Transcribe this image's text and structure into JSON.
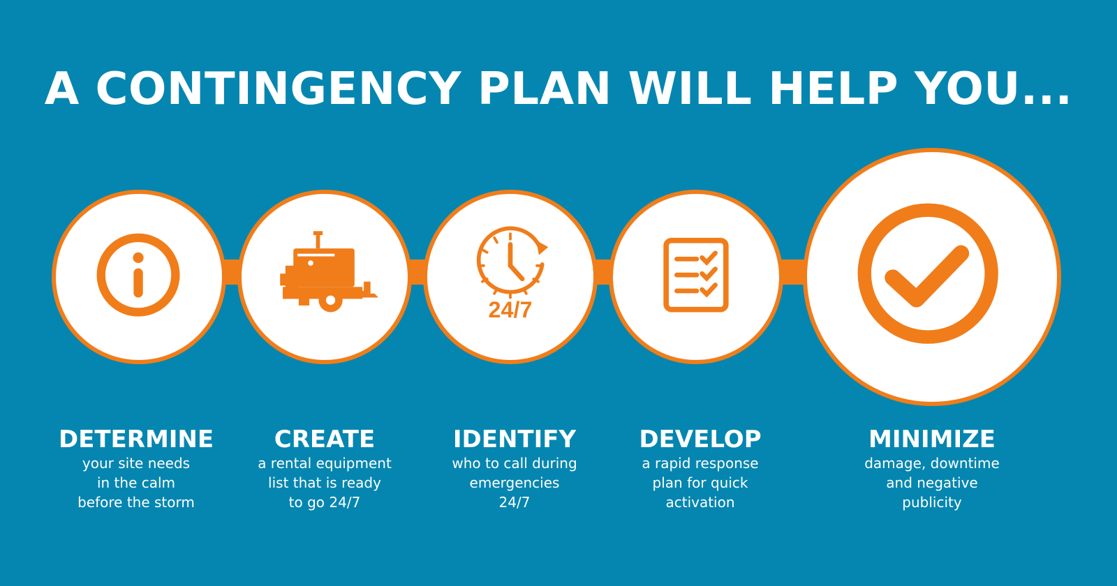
{
  "title": "A CONTINGENCY PLAN WILL HELP YOU...",
  "colors": {
    "background": "#0586b0",
    "accent": "#f07d1a",
    "circle_fill": "#ffffff",
    "text": "#ffffff"
  },
  "steps": [
    {
      "icon": "info-icon",
      "heading": "DETERMINE",
      "description": "your site needs\nin the calm\nbefore the storm"
    },
    {
      "icon": "trailer-pump-icon",
      "heading": "CREATE",
      "description": "a rental equipment\nlist that is ready\nto go 24/7"
    },
    {
      "icon": "clock-24-7-icon",
      "heading": "IDENTIFY",
      "description": "who to call during\nemergencies\n24/7",
      "icon_text": "24/7"
    },
    {
      "icon": "checklist-icon",
      "heading": "DEVELOP",
      "description": "a rapid response\nplan for quick\nactivation"
    },
    {
      "icon": "checkmark-circle-icon",
      "heading": "MINIMIZE",
      "description": "damage, downtime\nand negative\npublicity"
    }
  ]
}
